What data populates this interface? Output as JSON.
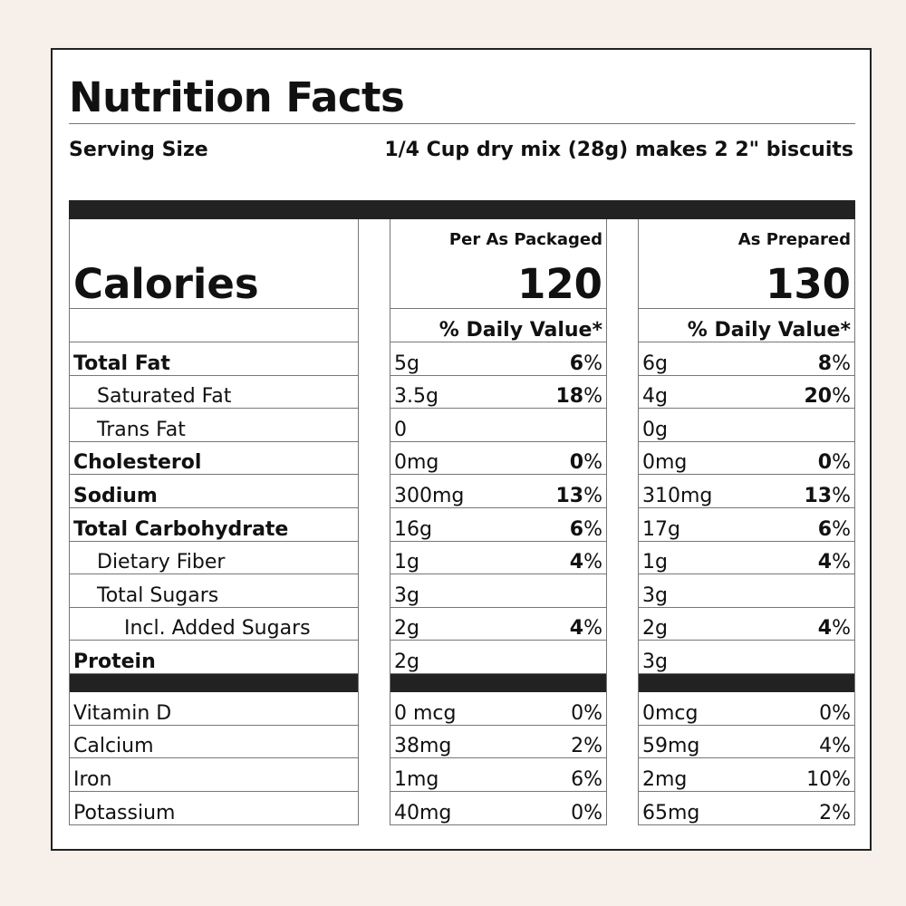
{
  "label": {
    "title": "Nutrition Facts",
    "serving_size_label": "Serving Size",
    "serving_size_value": "1/4 Cup dry mix (28g) makes 2 2\" biscuits",
    "calories_label": "Calories",
    "daily_value_header": "% Daily Value*"
  },
  "columns": [
    {
      "caption": "Per As Packaged",
      "calories": "120"
    },
    {
      "caption": "As Prepared",
      "calories": "130"
    }
  ],
  "nutrients": [
    {
      "name": "Total Fat",
      "packaged_amount": "5g",
      "packaged_dv": "6",
      "prepared_amount": "6g",
      "prepared_dv": "8"
    },
    {
      "name": "Saturated Fat",
      "packaged_amount": "3.5g",
      "packaged_dv": "18",
      "prepared_amount": "4g",
      "prepared_dv": "20"
    },
    {
      "name": "Trans Fat",
      "packaged_amount": "0",
      "packaged_dv": "",
      "prepared_amount": "0g",
      "prepared_dv": ""
    },
    {
      "name": "Cholesterol",
      "packaged_amount": "0mg",
      "packaged_dv": "0",
      "prepared_amount": "0mg",
      "prepared_dv": "0"
    },
    {
      "name": "Sodium",
      "packaged_amount": "300mg",
      "packaged_dv": "13",
      "prepared_amount": "310mg",
      "prepared_dv": "13"
    },
    {
      "name": "Total Carbohydrate",
      "packaged_amount": "16g",
      "packaged_dv": "6",
      "prepared_amount": "17g",
      "prepared_dv": "6"
    },
    {
      "name": "Dietary Fiber",
      "packaged_amount": "1g",
      "packaged_dv": "4",
      "prepared_amount": "1g",
      "prepared_dv": "4"
    },
    {
      "name": "Total Sugars",
      "packaged_amount": "3g",
      "packaged_dv": "",
      "prepared_amount": "3g",
      "prepared_dv": ""
    },
    {
      "name": "Incl. Added Sugars",
      "packaged_amount": "2g",
      "packaged_dv": "4",
      "prepared_amount": "2g",
      "prepared_dv": "4"
    },
    {
      "name": "Protein",
      "packaged_amount": "2g",
      "packaged_dv": "",
      "prepared_amount": "3g",
      "prepared_dv": ""
    }
  ],
  "vitamins": [
    {
      "name": "Vitamin D",
      "packaged_amount": "0 mcg",
      "packaged_dv": "0%",
      "prepared_amount": "0mcg",
      "prepared_dv": "0%"
    },
    {
      "name": "Calcium",
      "packaged_amount": "38mg",
      "packaged_dv": "2%",
      "prepared_amount": "59mg",
      "prepared_dv": "4%"
    },
    {
      "name": "Iron",
      "packaged_amount": "1mg",
      "packaged_dv": "6%",
      "prepared_amount": "2mg",
      "prepared_dv": "10%"
    },
    {
      "name": "Potassium",
      "packaged_amount": "40mg",
      "packaged_dv": "0%",
      "prepared_amount": "65mg",
      "prepared_dv": "2%"
    }
  ]
}
